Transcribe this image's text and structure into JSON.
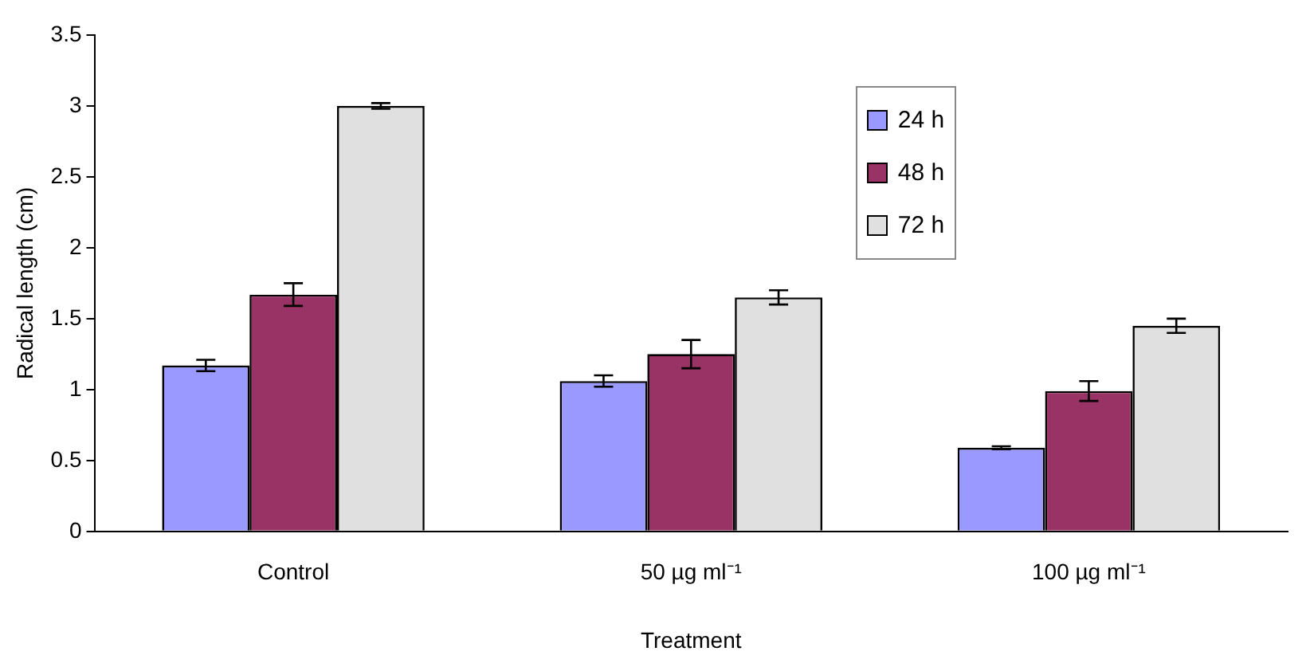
{
  "chart_data": {
    "type": "bar",
    "xlabel": "Treatment",
    "ylabel": "Radical length (cm)",
    "categories": [
      "Control",
      "50 µg ml⁻¹",
      "100 µg ml⁻¹"
    ],
    "series": [
      {
        "name": "24 h",
        "color": "#9999ff",
        "values": [
          1.17,
          1.06,
          0.59
        ],
        "errors": [
          0.04,
          0.04,
          0.01
        ]
      },
      {
        "name": "48 h",
        "color": "#993366",
        "values": [
          1.67,
          1.25,
          0.99
        ],
        "errors": [
          0.08,
          0.1,
          0.07
        ]
      },
      {
        "name": "72 h",
        "color": "#e0e0e0",
        "values": [
          3.0,
          1.65,
          1.45
        ],
        "errors": [
          0.02,
          0.05,
          0.05
        ]
      }
    ],
    "ylim": [
      0,
      3.5
    ],
    "yticks": [
      0,
      0.5,
      1,
      1.5,
      2,
      2.5,
      3,
      3.5
    ],
    "grid": false,
    "legend": "top"
  }
}
